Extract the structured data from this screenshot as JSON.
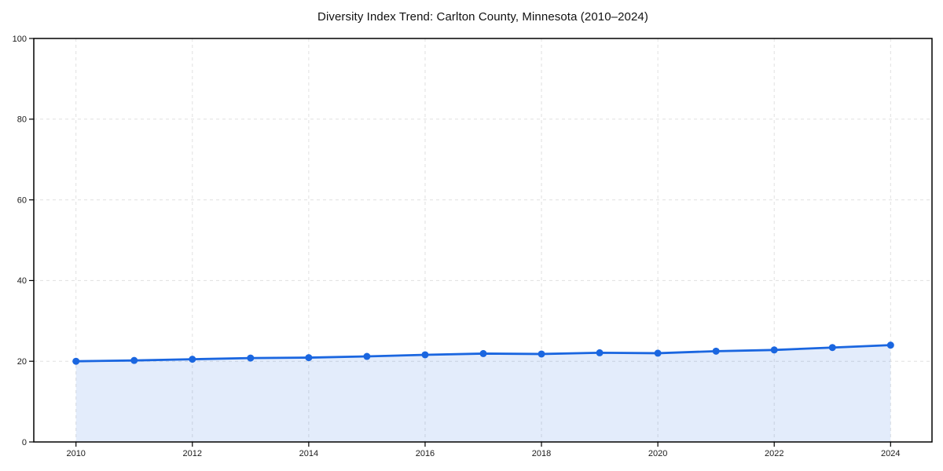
{
  "chart_data": {
    "type": "line",
    "title": "Diversity Index Trend: Carlton County, Minnesota (2010–2024)",
    "x": [
      2010,
      2011,
      2012,
      2013,
      2014,
      2015,
      2016,
      2017,
      2018,
      2019,
      2020,
      2021,
      2022,
      2023,
      2024
    ],
    "series": [
      {
        "name": "Diversity Index",
        "values": [
          20.0,
          20.2,
          20.5,
          20.8,
          20.9,
          21.2,
          21.6,
          21.9,
          21.8,
          22.1,
          22.0,
          22.5,
          22.8,
          23.4,
          24.0
        ]
      }
    ],
    "xlabel": "",
    "ylabel": "",
    "ylim": [
      0,
      100
    ],
    "yticks": [
      0,
      20,
      40,
      60,
      80,
      100
    ],
    "xticks": [
      2010,
      2012,
      2014,
      2016,
      2018,
      2020,
      2022,
      2024
    ],
    "grid": "dashed",
    "legend_position": "none",
    "area_fill": true,
    "markers": true,
    "colors": {
      "line": "#1a66e0",
      "fill": "rgba(26,102,224,0.12)",
      "grid": "#e0e0e0",
      "spine": "#000000",
      "tick_label": "#1a1a1a",
      "background": "#ffffff"
    }
  }
}
